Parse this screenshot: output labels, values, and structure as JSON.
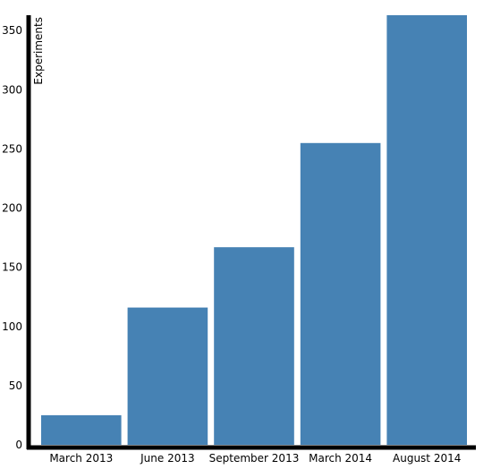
{
  "colors": {
    "bar": "#4682b4",
    "axis": "#000000",
    "background": "#ffffff"
  },
  "chart_data": {
    "type": "bar",
    "title": "",
    "xlabel": "",
    "ylabel": "Experiments",
    "categories": [
      "March 2013",
      "June 2013",
      "September 2013",
      "March 2014",
      "August 2014"
    ],
    "values": [
      25,
      116,
      167,
      255,
      363
    ],
    "ylim": [
      0,
      363
    ],
    "yticks": [
      0,
      50,
      100,
      150,
      200,
      250,
      300,
      350
    ],
    "grid": false,
    "legend": "none"
  }
}
